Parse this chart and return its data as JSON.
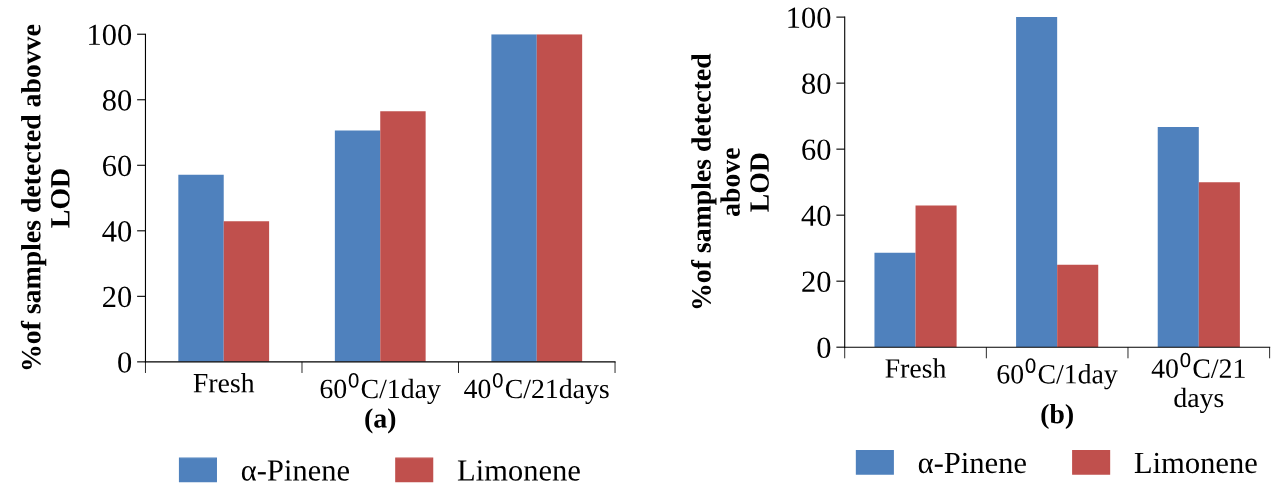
{
  "chart_data": [
    {
      "type": "bar",
      "categories": [
        "Fresh",
        "60$^{0}$C/1day",
        "40$^{0}$C/21days"
      ],
      "ylabel": "%of samples detected abovve\nLOD",
      "annotations": [
        "(a)"
      ],
      "ylim": [
        0,
        100
      ],
      "yticks": [
        0,
        20,
        40,
        60,
        80,
        100
      ],
      "legend": "bottom",
      "grid": false,
      "series": [
        {
          "name": "α-Pinene",
          "color": "#4f81bd",
          "values": [
            57.1,
            70.6,
            100
          ]
        },
        {
          "name": "Limonene",
          "color": "#c0504d",
          "values": [
            42.9,
            76.5,
            100
          ]
        }
      ]
    },
    {
      "type": "bar",
      "categories": [
        "Fresh",
        "60$^{0}$C/1day",
        "40$^{0}$C/21\ndays"
      ],
      "ylabel": "%of samples detected\nabove\nLOD",
      "annotations": [
        "(b)"
      ],
      "ylim": [
        0,
        100
      ],
      "yticks": [
        0,
        20,
        40,
        60,
        80,
        100
      ],
      "legend": "bottom",
      "grid": false,
      "series": [
        {
          "name": "α-Pinene",
          "color": "#4f81bd",
          "values": [
            28.6,
            100,
            66.7
          ]
        },
        {
          "name": "Limonene",
          "color": "#c0504d",
          "values": [
            42.9,
            25,
            50
          ]
        }
      ]
    }
  ]
}
